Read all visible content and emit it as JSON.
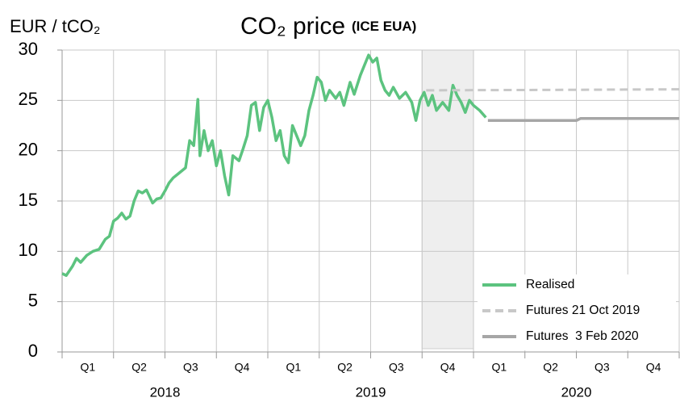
{
  "chart_data": {
    "type": "line",
    "title": "CO₂ price",
    "subtitle": "(ICE EUA)",
    "y_label": "EUR / tCO₂",
    "xlim": [
      2018,
      2021
    ],
    "ylim": [
      0,
      30
    ],
    "yticks": [
      0,
      5,
      10,
      15,
      20,
      25,
      30
    ],
    "xticks": [
      2018,
      2018.25,
      2018.5,
      2018.75,
      2019,
      2019.25,
      2019.5,
      2019.75,
      2020,
      2020.25,
      2020.5,
      2020.75,
      2021
    ],
    "quarter_labels": [
      {
        "value": 2018.125,
        "label": "Q1"
      },
      {
        "value": 2018.375,
        "label": "Q2"
      },
      {
        "value": 2018.625,
        "label": "Q3"
      },
      {
        "value": 2018.875,
        "label": "Q4"
      },
      {
        "value": 2019.125,
        "label": "Q1"
      },
      {
        "value": 2019.375,
        "label": "Q2"
      },
      {
        "value": 2019.625,
        "label": "Q3"
      },
      {
        "value": 2019.875,
        "label": "Q4"
      },
      {
        "value": 2020.125,
        "label": "Q1"
      },
      {
        "value": 2020.375,
        "label": "Q2"
      },
      {
        "value": 2020.625,
        "label": "Q3"
      },
      {
        "value": 2020.875,
        "label": "Q4"
      }
    ],
    "year_labels": [
      {
        "value": 2018.5,
        "label": "2018"
      },
      {
        "value": 2019.5,
        "label": "2019"
      },
      {
        "value": 2020.5,
        "label": "2020"
      }
    ],
    "shade": [
      2019.75,
      2020.0
    ],
    "grid": true,
    "legend": "lower right",
    "series": [
      {
        "name": "Realised",
        "color": "#5cc37f",
        "dash": false,
        "x": [
          2018.0,
          2018.02,
          2018.05,
          2018.07,
          2018.09,
          2018.12,
          2018.15,
          2018.18,
          2018.21,
          2018.23,
          2018.25,
          2018.27,
          2018.29,
          2018.31,
          2018.33,
          2018.35,
          2018.37,
          2018.39,
          2018.41,
          2018.44,
          2018.46,
          2018.48,
          2018.5,
          2018.52,
          2018.54,
          2018.57,
          2018.6,
          2018.62,
          2018.64,
          2018.66,
          2018.67,
          2018.69,
          2018.71,
          2018.73,
          2018.75,
          2018.77,
          2018.79,
          2018.81,
          2018.83,
          2018.86,
          2018.88,
          2018.9,
          2018.92,
          2018.94,
          2018.96,
          2018.98,
          2019.0,
          2019.02,
          2019.04,
          2019.06,
          2019.08,
          2019.1,
          2019.12,
          2019.14,
          2019.16,
          2019.18,
          2019.2,
          2019.22,
          2019.24,
          2019.26,
          2019.28,
          2019.3,
          2019.33,
          2019.35,
          2019.37,
          2019.4,
          2019.42,
          2019.45,
          2019.47,
          2019.49,
          2019.51,
          2019.53,
          2019.55,
          2019.57,
          2019.59,
          2019.61,
          2019.64,
          2019.67,
          2019.7,
          2019.72,
          2019.74,
          2019.76,
          2019.78,
          2019.8,
          2019.82,
          2019.85,
          2019.88,
          2019.9,
          2019.92,
          2019.94,
          2019.96,
          2019.98,
          2020.0,
          2020.03,
          2020.06
        ],
        "values": [
          7.8,
          7.6,
          8.5,
          9.3,
          8.9,
          9.6,
          10.0,
          10.2,
          11.2,
          11.5,
          13.0,
          13.3,
          13.8,
          13.2,
          13.5,
          15.0,
          16.0,
          15.8,
          16.1,
          14.8,
          15.2,
          15.3,
          16.0,
          16.8,
          17.3,
          17.8,
          18.3,
          21.0,
          20.5,
          25.1,
          19.5,
          22.0,
          20.0,
          21.0,
          18.5,
          20.0,
          17.5,
          15.6,
          19.5,
          19.0,
          20.2,
          21.5,
          24.5,
          24.8,
          22.0,
          24.3,
          25.0,
          23.3,
          21.0,
          22.0,
          19.5,
          18.8,
          22.5,
          21.5,
          20.5,
          21.5,
          24.0,
          25.5,
          27.3,
          26.8,
          25.0,
          26.0,
          25.2,
          25.8,
          24.5,
          26.8,
          25.6,
          27.5,
          28.5,
          29.5,
          28.8,
          29.2,
          27.0,
          26.0,
          25.5,
          26.3,
          25.2,
          25.8,
          24.8,
          23.0,
          25.0,
          25.8,
          24.5,
          25.5,
          24.0,
          24.8,
          24.0,
          26.5,
          25.5,
          24.8,
          23.8,
          25.0,
          24.5,
          24.0,
          23.3
        ]
      },
      {
        "name": "Futures 21 Oct 2019",
        "color": "#c8c8c8",
        "dash": true,
        "x": [
          2019.77,
          2020.5,
          2021.0
        ],
        "values": [
          26.0,
          26.05,
          26.1
        ]
      },
      {
        "name": "Futures  3 Feb 2020",
        "color": "#a6a6a6",
        "dash": false,
        "x": [
          2020.07,
          2020.5,
          2020.52,
          2021.0
        ],
        "values": [
          23.0,
          23.0,
          23.2,
          23.2
        ]
      }
    ]
  }
}
